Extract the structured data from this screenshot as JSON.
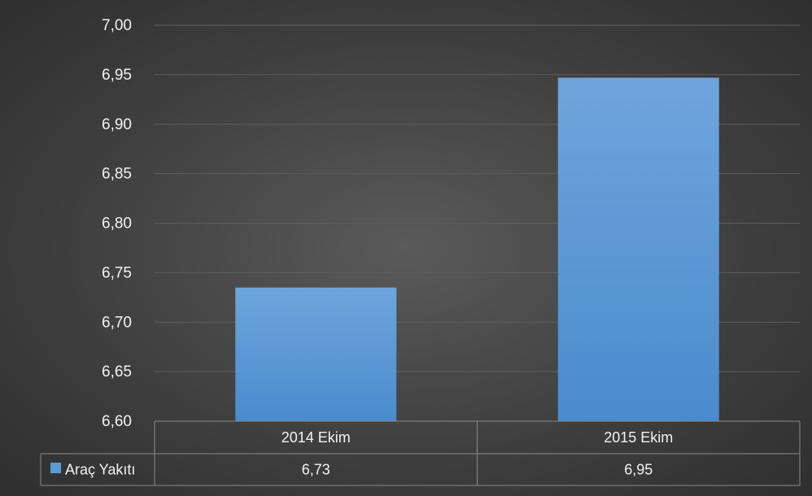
{
  "chart_data": {
    "type": "bar",
    "categories": [
      "2014 Ekim",
      "2015 Ekim"
    ],
    "series": [
      {
        "name": "Araç Yakıtı",
        "values": [
          6.735,
          6.947
        ],
        "data_labels": [
          "6,73",
          "6,95"
        ],
        "color": "#5b9bd5"
      }
    ],
    "ylim": [
      6.6,
      7.0
    ],
    "y_ticks": [
      "6,60",
      "6,65",
      "6,70",
      "6,75",
      "6,80",
      "6,85",
      "6,90",
      "6,95",
      "7,00"
    ],
    "grid": true,
    "legend": "data-table-left",
    "colors": {
      "background": "#4a4a4a",
      "bar": "#5b9bd5",
      "text": "#f2f2f2",
      "grid": "#5e5e5e",
      "table_line": "#8a8a8a"
    }
  }
}
